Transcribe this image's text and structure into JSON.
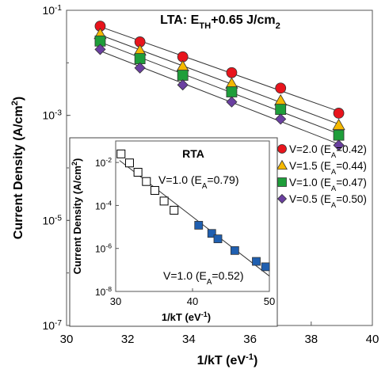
{
  "chart_data": [
    {
      "type": "scatter",
      "title_parts": [
        "LTA: E",
        "TH",
        "+0.65 J/cm",
        "2"
      ],
      "xlabel_parts": [
        "1/kT (eV",
        "-1",
        ")"
      ],
      "ylabel_parts": [
        "Current Density (A/cm",
        "2",
        ")"
      ],
      "xlim": [
        30,
        40
      ],
      "ylim": [
        1e-07,
        0.1
      ],
      "y_scale": "log",
      "x_ticks": [
        "30",
        "32",
        "34",
        "36",
        "38",
        "40"
      ],
      "y_ticks": [
        {
          "base": "10",
          "exp": "-1",
          "value": 0.1
        },
        {
          "base": "10",
          "exp": "-3",
          "value": 0.001
        },
        {
          "base": "10",
          "exp": "-5",
          "value": 1e-05
        },
        {
          "base": "10",
          "exp": "-7",
          "value": 1e-07
        }
      ],
      "legend_position": "right",
      "x": [
        31.1,
        32.4,
        33.8,
        35.4,
        37.0,
        38.9
      ],
      "series": [
        {
          "name_parts": [
            "V=2.0 (E",
            "A",
            "=0.42)"
          ],
          "marker": "circle",
          "color": "#e8141c",
          "y": [
            0.05,
            0.025,
            0.013,
            0.0065,
            0.0033,
            0.0011
          ]
        },
        {
          "name_parts": [
            "V=1.5 (E",
            "A",
            "=0.44)"
          ],
          "marker": "triangle",
          "color": "#f5b800",
          "y": [
            0.035,
            0.017,
            0.0085,
            0.004,
            0.0019,
            0.00065
          ]
        },
        {
          "name_parts": [
            "V=1.0 (E",
            "A",
            "=0.47)"
          ],
          "marker": "square",
          "color": "#1e9e3a",
          "y": [
            0.026,
            0.012,
            0.0058,
            0.0028,
            0.0013,
            0.00042
          ]
        },
        {
          "name_parts": [
            "V=0.5 (E",
            "A",
            "=0.50)"
          ],
          "marker": "diamond",
          "color": "#6a3fa0",
          "y": [
            0.018,
            0.008,
            0.0038,
            0.0018,
            0.00085,
            0.00027
          ]
        }
      ]
    },
    {
      "type": "scatter",
      "title": "RTA",
      "xlabel_parts": [
        "1/kT (eV",
        "-1",
        ")"
      ],
      "ylabel_parts": [
        "Current Density (A/cm",
        "2",
        ")"
      ],
      "xlim": [
        30,
        50
      ],
      "ylim": [
        1e-08,
        0.1
      ],
      "y_scale": "log",
      "x_ticks": [
        "30",
        "40",
        "50"
      ],
      "y_ticks": [
        {
          "base": "10",
          "exp": "-2",
          "value": 0.01
        },
        {
          "base": "10",
          "exp": "-4",
          "value": 0.0001
        },
        {
          "base": "10",
          "exp": "-6",
          "value": 1e-06
        },
        {
          "base": "10",
          "exp": "-8",
          "value": 1e-08
        }
      ],
      "series": [
        {
          "marker": "open-square",
          "color": "#000000",
          "x": [
            30.7,
            31.8,
            32.9,
            34.0,
            35.1,
            36.3,
            37.6
          ],
          "y": [
            0.025,
            0.0095,
            0.0035,
            0.0013,
            0.0005,
            0.00016,
            6e-05
          ]
        },
        {
          "marker": "square",
          "color": "#1f5fb0",
          "x": [
            40.8,
            42.5,
            43.3,
            45.5,
            48.3,
            49.5
          ],
          "y": [
            1.2e-05,
            5e-06,
            2.8e-06,
            8e-07,
            2.5e-07,
            1.4e-07
          ]
        }
      ],
      "annotations": [
        {
          "parts": [
            "V=1.0 (E",
            "A",
            "=0.79)"
          ]
        },
        {
          "parts": [
            "V=1.0 (E",
            "A",
            "=0.52)"
          ]
        }
      ]
    }
  ]
}
